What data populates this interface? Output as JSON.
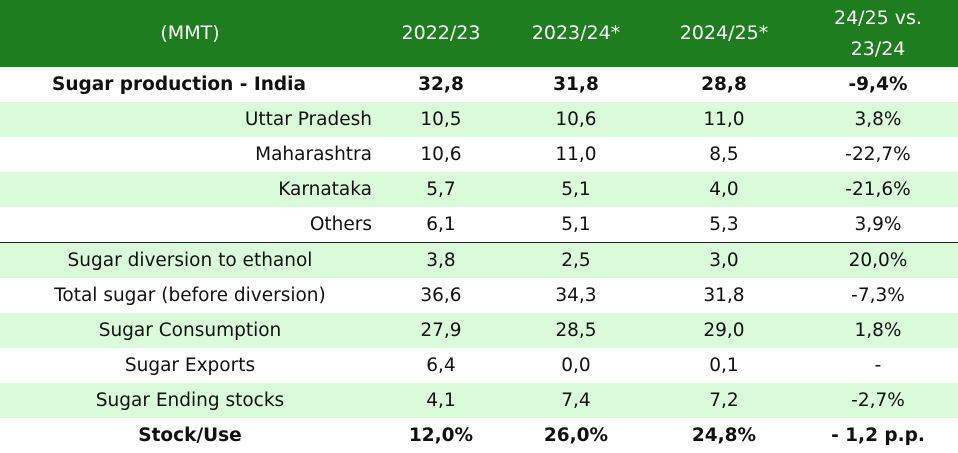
{
  "colors": {
    "header_bg": "#1e7d1e",
    "header_text": "#ffffff",
    "row_shade": "#d9fbd9",
    "text": "#111111"
  },
  "chart_data": {
    "type": "table",
    "columns": [
      "(MMT)",
      "2022/23",
      "2023/24*",
      "2024/25*",
      "24/25 vs. 23/24"
    ],
    "rows": [
      {
        "label": "Sugar production - India",
        "values": [
          "32,8",
          "31,8",
          "28,8",
          "-9,4%"
        ],
        "bold": true,
        "shaded": false,
        "align": "left",
        "separator": false
      },
      {
        "label": "Uttar Pradesh",
        "values": [
          "10,5",
          "10,6",
          "11,0",
          "3,8%"
        ],
        "bold": false,
        "shaded": true,
        "align": "right",
        "separator": false
      },
      {
        "label": "Maharashtra",
        "values": [
          "10,6",
          "11,0",
          "8,5",
          "-22,7%"
        ],
        "bold": false,
        "shaded": false,
        "align": "right",
        "separator": false
      },
      {
        "label": "Karnataka",
        "values": [
          "5,7",
          "5,1",
          "4,0",
          "-21,6%"
        ],
        "bold": false,
        "shaded": true,
        "align": "right",
        "separator": false
      },
      {
        "label": "Others",
        "values": [
          "6,1",
          "5,1",
          "5,3",
          "3,9%"
        ],
        "bold": false,
        "shaded": false,
        "align": "right",
        "separator": false
      },
      {
        "label": "Sugar diversion to ethanol",
        "values": [
          "3,8",
          "2,5",
          "3,0",
          "20,0%"
        ],
        "bold": false,
        "shaded": true,
        "align": "center",
        "separator": true
      },
      {
        "label": "Total sugar (before diversion)",
        "values": [
          "36,6",
          "34,3",
          "31,8",
          "-7,3%"
        ],
        "bold": false,
        "shaded": false,
        "align": "center",
        "separator": false
      },
      {
        "label": "Sugar Consumption",
        "values": [
          "27,9",
          "28,5",
          "29,0",
          "1,8%"
        ],
        "bold": false,
        "shaded": true,
        "align": "center",
        "separator": false
      },
      {
        "label": "Sugar Exports",
        "values": [
          "6,4",
          "0,0",
          "0,1",
          "-"
        ],
        "bold": false,
        "shaded": false,
        "align": "center",
        "separator": false
      },
      {
        "label": "Sugar Ending stocks",
        "values": [
          "4,1",
          "7,4",
          "7,2",
          "-2,7%"
        ],
        "bold": false,
        "shaded": true,
        "align": "center",
        "separator": false
      },
      {
        "label": "Stock/Use",
        "values": [
          "12,0%",
          "26,0%",
          "24,8%",
          "- 1,2 p.p."
        ],
        "bold": true,
        "shaded": false,
        "align": "center",
        "separator": false
      }
    ]
  }
}
